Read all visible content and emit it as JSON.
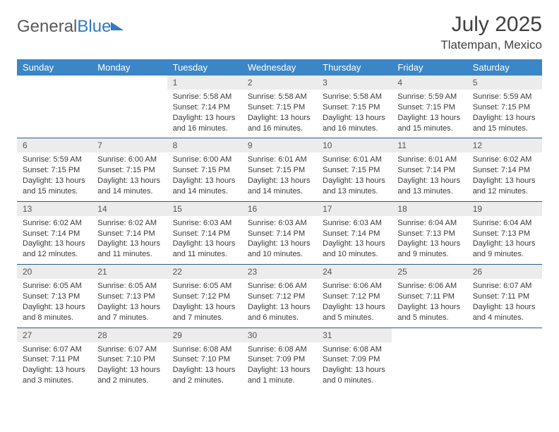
{
  "logo": {
    "part1": "General",
    "part2": "Blue"
  },
  "title": "July 2025",
  "location": "Tlatempan, Mexico",
  "columns": [
    "Sunday",
    "Monday",
    "Tuesday",
    "Wednesday",
    "Thursday",
    "Friday",
    "Saturday"
  ],
  "colors": {
    "header_bg": "#3b86c6",
    "header_text": "#ffffff",
    "daynum_bg": "#ececec",
    "border": "#2e5a8a",
    "logo_gray": "#5a5a5a",
    "logo_blue": "#2f7ac0"
  },
  "weeks": [
    [
      null,
      null,
      {
        "n": "1",
        "sr": "5:58 AM",
        "ss": "7:14 PM",
        "dl": "13 hours and 16 minutes."
      },
      {
        "n": "2",
        "sr": "5:58 AM",
        "ss": "7:15 PM",
        "dl": "13 hours and 16 minutes."
      },
      {
        "n": "3",
        "sr": "5:58 AM",
        "ss": "7:15 PM",
        "dl": "13 hours and 16 minutes."
      },
      {
        "n": "4",
        "sr": "5:59 AM",
        "ss": "7:15 PM",
        "dl": "13 hours and 15 minutes."
      },
      {
        "n": "5",
        "sr": "5:59 AM",
        "ss": "7:15 PM",
        "dl": "13 hours and 15 minutes."
      }
    ],
    [
      {
        "n": "6",
        "sr": "5:59 AM",
        "ss": "7:15 PM",
        "dl": "13 hours and 15 minutes."
      },
      {
        "n": "7",
        "sr": "6:00 AM",
        "ss": "7:15 PM",
        "dl": "13 hours and 14 minutes."
      },
      {
        "n": "8",
        "sr": "6:00 AM",
        "ss": "7:15 PM",
        "dl": "13 hours and 14 minutes."
      },
      {
        "n": "9",
        "sr": "6:01 AM",
        "ss": "7:15 PM",
        "dl": "13 hours and 14 minutes."
      },
      {
        "n": "10",
        "sr": "6:01 AM",
        "ss": "7:15 PM",
        "dl": "13 hours and 13 minutes."
      },
      {
        "n": "11",
        "sr": "6:01 AM",
        "ss": "7:14 PM",
        "dl": "13 hours and 13 minutes."
      },
      {
        "n": "12",
        "sr": "6:02 AM",
        "ss": "7:14 PM",
        "dl": "13 hours and 12 minutes."
      }
    ],
    [
      {
        "n": "13",
        "sr": "6:02 AM",
        "ss": "7:14 PM",
        "dl": "13 hours and 12 minutes."
      },
      {
        "n": "14",
        "sr": "6:02 AM",
        "ss": "7:14 PM",
        "dl": "13 hours and 11 minutes."
      },
      {
        "n": "15",
        "sr": "6:03 AM",
        "ss": "7:14 PM",
        "dl": "13 hours and 11 minutes."
      },
      {
        "n": "16",
        "sr": "6:03 AM",
        "ss": "7:14 PM",
        "dl": "13 hours and 10 minutes."
      },
      {
        "n": "17",
        "sr": "6:03 AM",
        "ss": "7:14 PM",
        "dl": "13 hours and 10 minutes."
      },
      {
        "n": "18",
        "sr": "6:04 AM",
        "ss": "7:13 PM",
        "dl": "13 hours and 9 minutes."
      },
      {
        "n": "19",
        "sr": "6:04 AM",
        "ss": "7:13 PM",
        "dl": "13 hours and 9 minutes."
      }
    ],
    [
      {
        "n": "20",
        "sr": "6:05 AM",
        "ss": "7:13 PM",
        "dl": "13 hours and 8 minutes."
      },
      {
        "n": "21",
        "sr": "6:05 AM",
        "ss": "7:13 PM",
        "dl": "13 hours and 7 minutes."
      },
      {
        "n": "22",
        "sr": "6:05 AM",
        "ss": "7:12 PM",
        "dl": "13 hours and 7 minutes."
      },
      {
        "n": "23",
        "sr": "6:06 AM",
        "ss": "7:12 PM",
        "dl": "13 hours and 6 minutes."
      },
      {
        "n": "24",
        "sr": "6:06 AM",
        "ss": "7:12 PM",
        "dl": "13 hours and 5 minutes."
      },
      {
        "n": "25",
        "sr": "6:06 AM",
        "ss": "7:11 PM",
        "dl": "13 hours and 5 minutes."
      },
      {
        "n": "26",
        "sr": "6:07 AM",
        "ss": "7:11 PM",
        "dl": "13 hours and 4 minutes."
      }
    ],
    [
      {
        "n": "27",
        "sr": "6:07 AM",
        "ss": "7:11 PM",
        "dl": "13 hours and 3 minutes."
      },
      {
        "n": "28",
        "sr": "6:07 AM",
        "ss": "7:10 PM",
        "dl": "13 hours and 2 minutes."
      },
      {
        "n": "29",
        "sr": "6:08 AM",
        "ss": "7:10 PM",
        "dl": "13 hours and 2 minutes."
      },
      {
        "n": "30",
        "sr": "6:08 AM",
        "ss": "7:09 PM",
        "dl": "13 hours and 1 minute."
      },
      {
        "n": "31",
        "sr": "6:08 AM",
        "ss": "7:09 PM",
        "dl": "13 hours and 0 minutes."
      },
      null,
      null
    ]
  ],
  "labels": {
    "sunrise": "Sunrise:",
    "sunset": "Sunset:",
    "daylight": "Daylight:"
  }
}
